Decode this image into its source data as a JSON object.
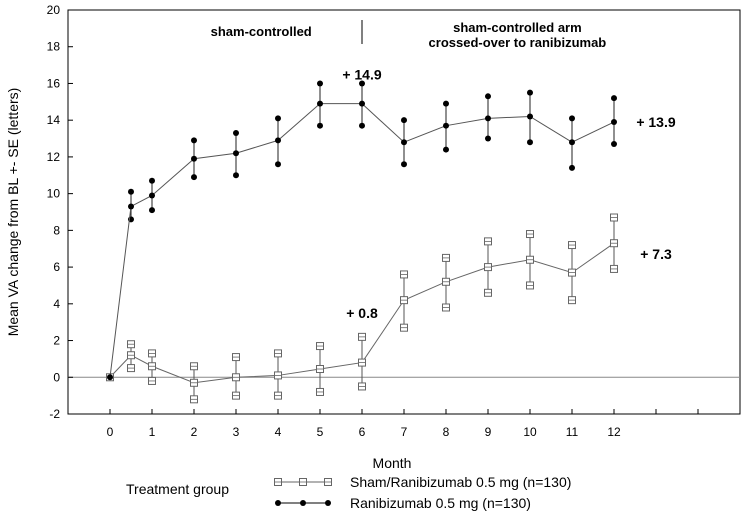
{
  "chart_data": {
    "type": "line",
    "title": "",
    "xlabel": "Month",
    "ylabel": "Mean VA change from BL +- SE (letters)",
    "xlim": [
      -1,
      15
    ],
    "ylim": [
      -2,
      20
    ],
    "x_ticks": [
      0,
      1,
      2,
      3,
      4,
      5,
      6,
      7,
      8,
      9,
      10,
      11,
      12
    ],
    "y_ticks": [
      -2,
      0,
      2,
      4,
      6,
      8,
      10,
      12,
      14,
      16,
      18,
      20
    ],
    "grid": false,
    "reference_line_y": 0,
    "divider_x": 6,
    "regions": {
      "left_label": "sham-controlled",
      "right_label_line1": "sham-controlled arm",
      "right_label_line2": "crossed-over to ranibizumab"
    },
    "legend_title": "Treatment group",
    "series": [
      {
        "name": "Sham/Ranibizumab 0.5 mg (n=130)",
        "marker": "open-square",
        "color": "#666666",
        "x": [
          0,
          0.5,
          1,
          2,
          3,
          4,
          5,
          6,
          7,
          8,
          9,
          10,
          11,
          12
        ],
        "y": [
          0,
          1.2,
          0.6,
          -0.3,
          0,
          0.1,
          0.45,
          0.8,
          4.2,
          5.2,
          6.0,
          6.4,
          5.7,
          7.3
        ],
        "lower": [
          0,
          0.5,
          -0.2,
          -1.2,
          -1.0,
          -1.0,
          -0.8,
          -0.5,
          2.7,
          3.8,
          4.6,
          5.0,
          4.2,
          5.9
        ],
        "upper": [
          0,
          1.8,
          1.3,
          0.6,
          1.1,
          1.3,
          1.7,
          2.2,
          5.6,
          6.5,
          7.4,
          7.8,
          7.2,
          8.7
        ]
      },
      {
        "name": "Ranibizumab 0.5 mg (n=130)",
        "marker": "filled-circle",
        "color": "#000000",
        "x": [
          0,
          0.5,
          1,
          2,
          3,
          4,
          5,
          6,
          7,
          8,
          9,
          10,
          11,
          12
        ],
        "y": [
          0,
          9.3,
          9.9,
          11.9,
          12.2,
          12.9,
          14.9,
          14.9,
          12.8,
          13.7,
          14.1,
          14.2,
          12.8,
          13.9
        ],
        "lower": [
          0,
          8.6,
          9.1,
          10.9,
          11.0,
          11.6,
          13.7,
          13.7,
          11.6,
          12.4,
          13.0,
          12.8,
          11.4,
          12.7
        ],
        "upper": [
          0,
          10.1,
          10.7,
          12.9,
          13.3,
          14.1,
          16.0,
          16.0,
          14.0,
          14.9,
          15.3,
          15.5,
          14.1,
          15.2
        ]
      }
    ],
    "annotations": [
      {
        "text": "+ 14.9",
        "x": 6,
        "y": 16.5
      },
      {
        "text": "+ 13.9",
        "x": 13,
        "y": 13.9
      },
      {
        "text": "+ 0.8",
        "x": 6,
        "y": 3.5
      },
      {
        "text": "+ 7.3",
        "x": 13,
        "y": 6.7
      }
    ]
  }
}
